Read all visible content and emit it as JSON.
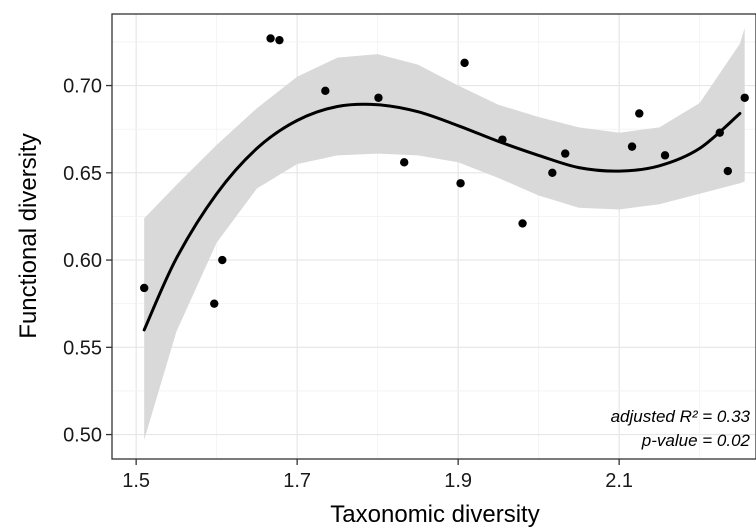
{
  "chart_data": {
    "type": "scatter",
    "title": "",
    "xlabel": "Taxonomic diversity",
    "ylabel": "Functional diversity",
    "xlim": [
      1.47,
      2.27
    ],
    "ylim": [
      0.486,
      0.741
    ],
    "x_ticks": [
      1.5,
      1.7,
      1.9,
      2.1
    ],
    "x_tick_labels": [
      "1.5",
      "1.7",
      "1.9",
      "2.1"
    ],
    "y_ticks": [
      0.5,
      0.55,
      0.6,
      0.65,
      0.7
    ],
    "y_tick_labels": [
      "0.50",
      "0.55",
      "0.60",
      "0.65",
      "0.70"
    ],
    "grid": true,
    "legend": "none",
    "points": [
      {
        "x": 1.51,
        "y": 0.584
      },
      {
        "x": 1.597,
        "y": 0.575
      },
      {
        "x": 1.607,
        "y": 0.6
      },
      {
        "x": 1.667,
        "y": 0.727
      },
      {
        "x": 1.678,
        "y": 0.726
      },
      {
        "x": 1.735,
        "y": 0.697
      },
      {
        "x": 1.801,
        "y": 0.693
      },
      {
        "x": 1.833,
        "y": 0.656
      },
      {
        "x": 1.903,
        "y": 0.644
      },
      {
        "x": 1.908,
        "y": 0.713
      },
      {
        "x": 1.955,
        "y": 0.669
      },
      {
        "x": 1.98,
        "y": 0.621
      },
      {
        "x": 2.017,
        "y": 0.65
      },
      {
        "x": 2.033,
        "y": 0.661
      },
      {
        "x": 2.116,
        "y": 0.665
      },
      {
        "x": 2.125,
        "y": 0.684
      },
      {
        "x": 2.157,
        "y": 0.66
      },
      {
        "x": 2.225,
        "y": 0.673
      },
      {
        "x": 2.235,
        "y": 0.651
      },
      {
        "x": 2.256,
        "y": 0.693
      }
    ],
    "fit_line": {
      "x": [
        1.51,
        1.55,
        1.6,
        1.65,
        1.7,
        1.75,
        1.8,
        1.85,
        1.9,
        1.95,
        2.0,
        2.05,
        2.1,
        2.15,
        2.2,
        2.25
      ],
      "y": [
        0.56,
        0.601,
        0.638,
        0.664,
        0.68,
        0.688,
        0.689,
        0.685,
        0.677,
        0.668,
        0.66,
        0.653,
        0.651,
        0.654,
        0.664,
        0.684
      ]
    },
    "confidence_band": {
      "x": [
        1.51,
        1.55,
        1.6,
        1.65,
        1.7,
        1.75,
        1.8,
        1.85,
        1.9,
        1.95,
        2.0,
        2.05,
        2.1,
        2.15,
        2.2,
        2.25,
        2.256
      ],
      "lower": [
        0.497,
        0.559,
        0.61,
        0.641,
        0.655,
        0.66,
        0.661,
        0.66,
        0.656,
        0.647,
        0.637,
        0.63,
        0.629,
        0.632,
        0.638,
        0.644,
        0.645
      ],
      "upper": [
        0.624,
        0.643,
        0.666,
        0.687,
        0.705,
        0.716,
        0.718,
        0.712,
        0.7,
        0.689,
        0.682,
        0.676,
        0.673,
        0.676,
        0.69,
        0.724,
        0.733
      ]
    },
    "annotations": [
      "adjusted R² = 0.33",
      "p-value = 0.02"
    ]
  }
}
